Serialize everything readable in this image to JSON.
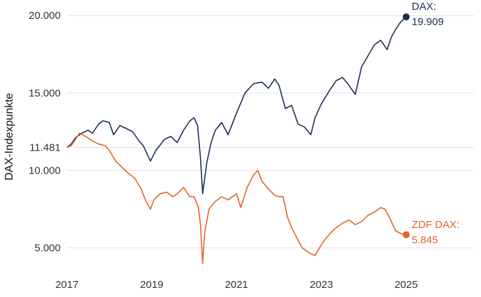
{
  "chart_data": {
    "type": "line",
    "title": "",
    "xlabel": "",
    "ylabel": "DAX-Indexpunkte",
    "xlim": [
      2017.0,
      2026.6
    ],
    "ylim": [
      3000,
      21000
    ],
    "grid": "horizontal",
    "legend": "none",
    "y_ticks": [
      {
        "value": 20000,
        "label": "20.000"
      },
      {
        "value": 15000,
        "label": "15.000"
      },
      {
        "value": 11481,
        "label": "11.481"
      },
      {
        "value": 10000,
        "label": "10.000"
      },
      {
        "value": 5000,
        "label": "5.000"
      }
    ],
    "x_ticks": [
      {
        "value": 2017,
        "label": "2017"
      },
      {
        "value": 2019,
        "label": "2019"
      },
      {
        "value": 2021,
        "label": "2021"
      },
      {
        "value": 2023,
        "label": "2023"
      },
      {
        "value": 2025,
        "label": "2025"
      }
    ],
    "series": [
      {
        "name": "DAX",
        "color": "#1b2f57",
        "end_label": "DAX:",
        "end_value": "19.909",
        "x": [
          2017.0,
          2017.1,
          2017.2,
          2017.35,
          2017.5,
          2017.6,
          2017.75,
          2017.85,
          2018.0,
          2018.1,
          2018.25,
          2018.4,
          2018.55,
          2018.7,
          2018.8,
          2018.97,
          2019.1,
          2019.3,
          2019.45,
          2019.6,
          2019.75,
          2019.9,
          2020.0,
          2020.08,
          2020.15,
          2020.2,
          2020.3,
          2020.4,
          2020.5,
          2020.65,
          2020.8,
          2021.0,
          2021.2,
          2021.4,
          2021.6,
          2021.75,
          2021.9,
          2022.0,
          2022.15,
          2022.3,
          2022.45,
          2022.6,
          2022.75,
          2022.85,
          2023.0,
          2023.2,
          2023.35,
          2023.5,
          2023.65,
          2023.8,
          2023.95,
          2024.1,
          2024.25,
          2024.4,
          2024.55,
          2024.65,
          2024.75,
          2024.85,
          2024.95,
          2025.0
        ],
        "y": [
          11481,
          11700,
          12100,
          12400,
          12600,
          12400,
          13000,
          13200,
          13100,
          12300,
          12900,
          12700,
          12500,
          11900,
          11600,
          10600,
          11300,
          12000,
          12200,
          11800,
          12600,
          13200,
          13400,
          12900,
          10800,
          8500,
          10500,
          11800,
          12600,
          13100,
          12300,
          13700,
          15000,
          15600,
          15700,
          15300,
          15900,
          15500,
          14000,
          14200,
          13000,
          12800,
          12300,
          13400,
          14300,
          15200,
          15800,
          16000,
          15500,
          14900,
          16700,
          17400,
          18100,
          18400,
          17800,
          18600,
          19100,
          19500,
          19800,
          19909
        ]
      },
      {
        "name": "ZDF DAX",
        "color": "#e0662c",
        "end_label": "ZDF DAX:",
        "end_value": "5.845",
        "x": [
          2017.0,
          2017.1,
          2017.2,
          2017.3,
          2017.5,
          2017.6,
          2017.75,
          2017.9,
          2018.0,
          2018.15,
          2018.3,
          2018.45,
          2018.6,
          2018.75,
          2018.85,
          2018.97,
          2019.05,
          2019.2,
          2019.35,
          2019.5,
          2019.6,
          2019.75,
          2019.9,
          2020.0,
          2020.1,
          2020.15,
          2020.2,
          2020.25,
          2020.35,
          2020.5,
          2020.65,
          2020.8,
          2021.0,
          2021.1,
          2021.25,
          2021.4,
          2021.5,
          2021.6,
          2021.75,
          2021.9,
          2022.0,
          2022.1,
          2022.2,
          2022.3,
          2022.45,
          2022.55,
          2022.7,
          2022.85,
          2023.0,
          2023.1,
          2023.3,
          2023.5,
          2023.65,
          2023.8,
          2023.95,
          2024.1,
          2024.25,
          2024.4,
          2024.5,
          2024.6,
          2024.75,
          2024.9,
          2025.0
        ],
        "y": [
          11481,
          11600,
          12000,
          12400,
          12100,
          11900,
          11700,
          11600,
          11300,
          10600,
          10200,
          9800,
          9500,
          8800,
          8100,
          7500,
          8100,
          8500,
          8600,
          8300,
          8500,
          8900,
          8300,
          8300,
          7600,
          6500,
          4000,
          6000,
          7500,
          8000,
          8300,
          8100,
          8500,
          7600,
          8900,
          9700,
          10000,
          9300,
          8800,
          8400,
          8300,
          8300,
          7000,
          6300,
          5500,
          5000,
          4700,
          4500,
          5200,
          5600,
          6200,
          6600,
          6800,
          6500,
          6700,
          7100,
          7300,
          7600,
          7500,
          7000,
          6100,
          5900,
          5845
        ]
      }
    ]
  }
}
